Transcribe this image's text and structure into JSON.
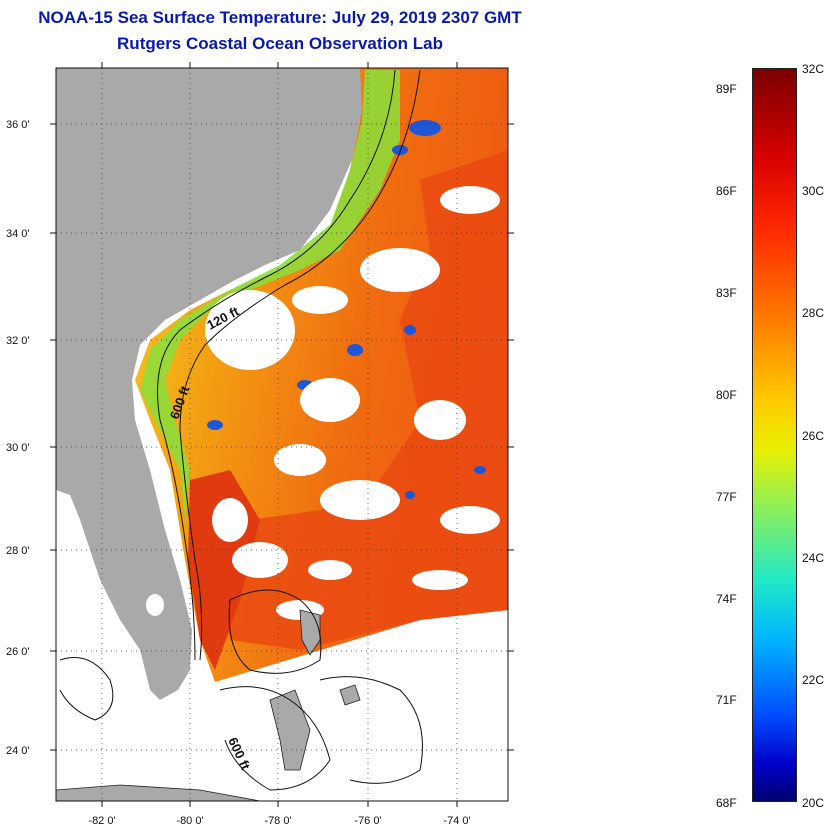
{
  "header": {
    "title": "NOAA-15 Sea Surface Temperature:  July 29, 2019 2307 GMT",
    "subtitle": "Rutgers Coastal Ocean Observation Lab"
  },
  "map": {
    "lat_labels": [
      "36 0'",
      "34 0'",
      "32 0'",
      "30 0'",
      "28 0'",
      "26 0'",
      "24 0'"
    ],
    "lon_labels": [
      "-82 0'",
      "-80 0'",
      "-78 0'",
      "-76 0'",
      "-74 0'"
    ],
    "contours": {
      "shelf_120": "120 ft",
      "slope_600_north": "600 ft",
      "slope_600_south": "600 ft"
    },
    "colors": {
      "land": "#a9a9a9",
      "cloud": "#ffffff",
      "warm": "#f04010",
      "cool": "#1e56d8"
    }
  },
  "colorbar": {
    "fahrenheit_labels": [
      "89F",
      "86F",
      "83F",
      "80F",
      "77F",
      "74F",
      "71F",
      "68F"
    ],
    "celsius_labels": [
      "32C",
      "30C",
      "28C",
      "26C",
      "24C",
      "22C",
      "20C"
    ],
    "range_c": [
      20,
      32
    ],
    "range_f": [
      68,
      89.6
    ]
  }
}
